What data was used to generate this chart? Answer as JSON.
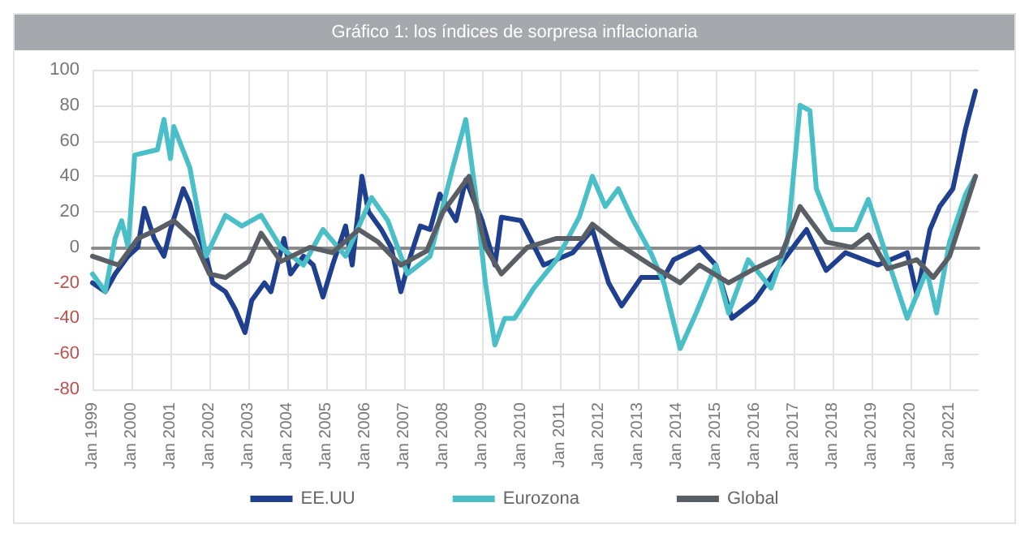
{
  "chart_data": {
    "type": "line",
    "title": "Gráfico 1: los índices de sorpresa inflacionaria",
    "xlim": [
      "1999-01",
      "2021-10"
    ],
    "xticks": [
      {
        "value": "1999-01",
        "label": "Jan 1999"
      },
      {
        "value": "2000-01",
        "label": "Jan 2000"
      },
      {
        "value": "2001-01",
        "label": "Jan 2001"
      },
      {
        "value": "2002-01",
        "label": "Jan 2002"
      },
      {
        "value": "2003-01",
        "label": "Jan 2003"
      },
      {
        "value": "2004-01",
        "label": "Jan 2004"
      },
      {
        "value": "2005-01",
        "label": "Jan 2005"
      },
      {
        "value": "2006-01",
        "label": "Jan 2006"
      },
      {
        "value": "2007-01",
        "label": "Jan 2007"
      },
      {
        "value": "2008-01",
        "label": "Jan 2008"
      },
      {
        "value": "2009-01",
        "label": "Jan 2009"
      },
      {
        "value": "2010-01",
        "label": "Jan 2010"
      },
      {
        "value": "2011-01",
        "label": "Jan 2011"
      },
      {
        "value": "2012-01",
        "label": "Jan 2012"
      },
      {
        "value": "2013-01",
        "label": "Jan 2013"
      },
      {
        "value": "2014-01",
        "label": "Jan 2014"
      },
      {
        "value": "2015-01",
        "label": "Jan 2015"
      },
      {
        "value": "2016-01",
        "label": "Jan 2016"
      },
      {
        "value": "2017-01",
        "label": "Jan 2017"
      },
      {
        "value": "2018-01",
        "label": "Jan 2018"
      },
      {
        "value": "2019-01",
        "label": "Jan 2019"
      },
      {
        "value": "2020-01",
        "label": "Jan 2020"
      },
      {
        "value": "2021-01",
        "label": "Jan 2021"
      }
    ],
    "ylim": [
      -80,
      100
    ],
    "yticks": [
      -80,
      -60,
      -40,
      -20,
      0,
      20,
      40,
      60,
      80,
      100
    ],
    "grid": true,
    "legend": "bottom",
    "marker": "none",
    "line_style": "solid",
    "series": [
      {
        "name": "EE.UU",
        "color": "#1f3f8f",
        "x": [
          "1999-01",
          "1999-05",
          "1999-08",
          "1999-12",
          "2000-03",
          "2000-05",
          "2000-08",
          "2000-11",
          "2001-01",
          "2001-05",
          "2001-07",
          "2001-09",
          "2001-12",
          "2002-02",
          "2002-06",
          "2002-09",
          "2002-12",
          "2003-02",
          "2003-06",
          "2003-08",
          "2003-12",
          "2004-02",
          "2004-06",
          "2004-09",
          "2004-12",
          "2005-03",
          "2005-07",
          "2005-09",
          "2005-12",
          "2006-02",
          "2006-06",
          "2006-09",
          "2006-12",
          "2007-03",
          "2007-06",
          "2007-09",
          "2007-12",
          "2008-05",
          "2008-08",
          "2009-01",
          "2009-05",
          "2009-07",
          "2010-01",
          "2010-08",
          "2011-05",
          "2011-11",
          "2012-04",
          "2012-08",
          "2013-02",
          "2013-09",
          "2013-12",
          "2014-08",
          "2015-01",
          "2015-06",
          "2016-01",
          "2016-06",
          "2017-02",
          "2017-05",
          "2017-11",
          "2018-05",
          "2019-03",
          "2019-12",
          "2020-03",
          "2020-07",
          "2020-10",
          "2021-02",
          "2021-06",
          "2021-09"
        ],
        "values": [
          -20,
          -25,
          -15,
          -5,
          0,
          22,
          5,
          -5,
          10,
          33,
          25,
          10,
          -5,
          -20,
          -25,
          -35,
          -48,
          -30,
          -20,
          -25,
          5,
          -15,
          -5,
          -10,
          -28,
          -10,
          12,
          -10,
          40,
          20,
          10,
          0,
          -25,
          -5,
          12,
          10,
          30,
          15,
          38,
          15,
          -10,
          17,
          15,
          -10,
          -3,
          10,
          -20,
          -33,
          -17,
          -17,
          -7,
          0,
          -10,
          -40,
          -30,
          -17,
          3,
          10,
          -13,
          -3,
          -10,
          -3,
          -27,
          10,
          23,
          33,
          67,
          88
        ]
      },
      {
        "name": "Eurozona",
        "color": "#4bbfc8",
        "x": [
          "1999-01",
          "1999-05",
          "1999-08",
          "1999-10",
          "1999-12",
          "2000-02",
          "2000-09",
          "2000-11",
          "2001-01",
          "2001-02",
          "2001-07",
          "2001-12",
          "2002-06",
          "2002-11",
          "2003-05",
          "2003-11",
          "2004-06",
          "2004-12",
          "2005-07",
          "2006-03",
          "2006-08",
          "2007-02",
          "2007-09",
          "2008-04",
          "2008-08",
          "2008-11",
          "2009-02",
          "2009-05",
          "2009-08",
          "2009-11",
          "2010-05",
          "2010-12",
          "2011-07",
          "2011-11",
          "2012-03",
          "2012-07",
          "2012-11",
          "2013-05",
          "2013-09",
          "2014-02",
          "2014-07",
          "2015-01",
          "2015-05",
          "2015-11",
          "2016-06",
          "2016-11",
          "2017-03",
          "2017-06",
          "2017-08",
          "2018-01",
          "2018-08",
          "2018-12",
          "2019-06",
          "2019-12",
          "2020-06",
          "2020-09",
          "2021-01",
          "2021-06",
          "2021-09"
        ],
        "values": [
          -15,
          -25,
          5,
          15,
          0,
          52,
          55,
          72,
          50,
          68,
          45,
          -5,
          18,
          12,
          18,
          0,
          -10,
          10,
          -5,
          28,
          15,
          -15,
          -5,
          45,
          72,
          30,
          -20,
          -55,
          -40,
          -40,
          -23,
          -7,
          17,
          40,
          23,
          33,
          17,
          -3,
          -20,
          -57,
          -37,
          -10,
          -37,
          -7,
          -23,
          3,
          80,
          77,
          33,
          10,
          10,
          27,
          -7,
          -40,
          -13,
          -37,
          3,
          30,
          40
        ]
      },
      {
        "name": "Global",
        "color": "#5a5f66",
        "x": [
          "1999-01",
          "1999-09",
          "2000-03",
          "2000-09",
          "2001-02",
          "2001-08",
          "2002-01",
          "2002-06",
          "2003-01",
          "2003-05",
          "2003-11",
          "2004-08",
          "2005-03",
          "2005-11",
          "2006-05",
          "2006-12",
          "2007-08",
          "2008-01",
          "2008-09",
          "2009-02",
          "2009-07",
          "2010-03",
          "2010-12",
          "2011-08",
          "2011-11",
          "2012-06",
          "2013-05",
          "2014-02",
          "2014-08",
          "2015-05",
          "2016-01",
          "2016-09",
          "2017-03",
          "2017-11",
          "2018-07",
          "2018-12",
          "2019-06",
          "2020-03",
          "2020-08",
          "2021-01",
          "2021-09"
        ],
        "values": [
          -5,
          -10,
          5,
          10,
          15,
          5,
          -15,
          -17,
          -8,
          8,
          -8,
          0,
          -3,
          10,
          3,
          -10,
          -2,
          20,
          40,
          0,
          -15,
          0,
          5,
          5,
          13,
          3,
          -10,
          -20,
          -10,
          -20,
          -12,
          -5,
          23,
          3,
          0,
          7,
          -12,
          -7,
          -17,
          -5,
          40
        ]
      }
    ]
  }
}
